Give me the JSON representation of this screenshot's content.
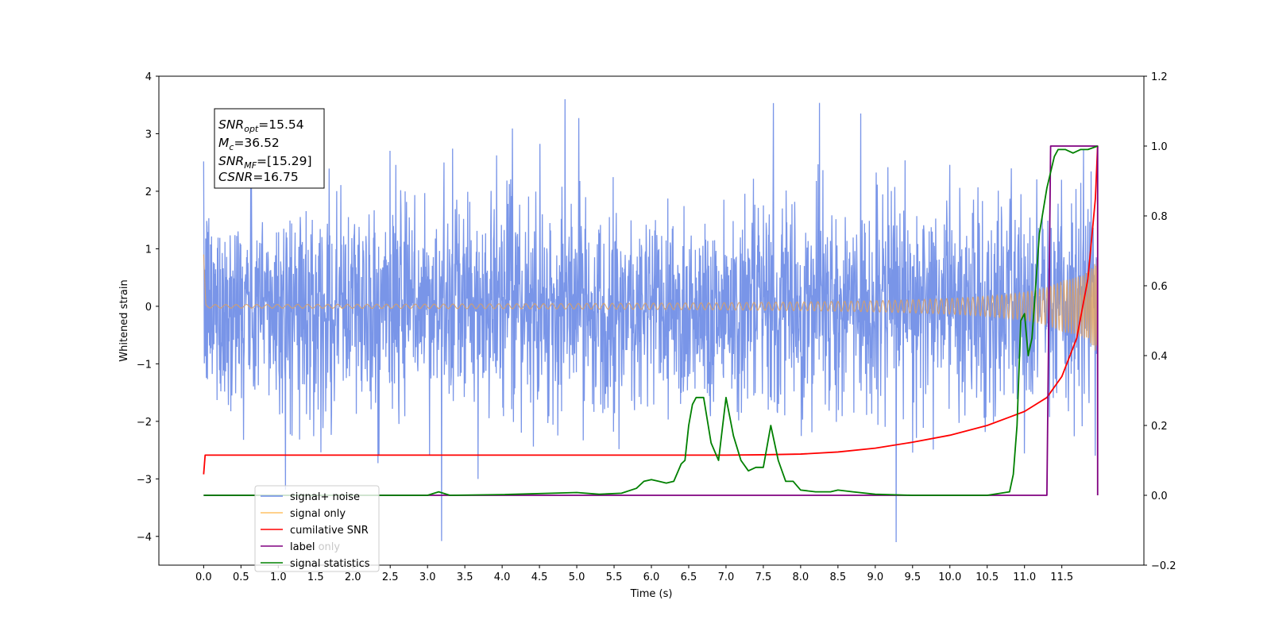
{
  "chart_data": {
    "type": "line",
    "xlabel": "Time (s)",
    "ylabel": "Whitened strain",
    "xlim": [
      -0.6,
      12.6
    ],
    "ylim": [
      -4.5,
      4.0
    ],
    "y2lim": [
      -0.2,
      1.2
    ],
    "x_ticks": [
      "0.0",
      "0.5",
      "1.0",
      "1.5",
      "2.0",
      "2.5",
      "3.0",
      "3.5",
      "4.0",
      "4.5",
      "5.0",
      "5.5",
      "6.0",
      "6.5",
      "7.0",
      "7.5",
      "8.0",
      "8.5",
      "9.0",
      "9.5",
      "10.0",
      "10.5",
      "11.0",
      "11.5"
    ],
    "y_ticks": [
      "4",
      "3",
      "2",
      "1",
      "0",
      "−1",
      "−2",
      "−3",
      "−4"
    ],
    "y2_ticks": [
      "1.2",
      "1.0",
      "0.8",
      "0.6",
      "0.4",
      "0.2",
      "0.0",
      "−0.2"
    ],
    "annotation": {
      "line1": {
        "sym": "SNR",
        "sub": "opt",
        "val": "=15.54"
      },
      "line2": {
        "sym": "M",
        "sub": "c",
        "val": "=36.52"
      },
      "line3": {
        "sym": "SNR",
        "sub": "MF",
        "val": "=[15.29]"
      },
      "line4": {
        "sym": "CSNR",
        "sub": "",
        "val": "=16.75"
      }
    },
    "legend": {
      "placement": "lower-left",
      "entries": [
        "signal+ noise",
        "signal only",
        "cumilative SNR",
        "label",
        "label only",
        "signal statistics"
      ]
    },
    "legend_overlap_text": "label only",
    "series": [
      {
        "name": "signal+ noise",
        "axis": "left",
        "color": "#6a8ae6",
        "kind": "noise",
        "t_start": 0.0,
        "t_end": 11.98,
        "noise_sigma": 1.0,
        "chirp_peak_amp": 0.9
      },
      {
        "name": "signal only",
        "axis": "left",
        "color": "#d9a066",
        "kind": "chirp",
        "t_start": 0.0,
        "t_end": 11.98,
        "t_merger": 12.0,
        "peak_amp": 1.0
      },
      {
        "name": "cumilative SNR",
        "axis": "right",
        "color": "#ff0000",
        "t": [
          0.0,
          0.02,
          0.5,
          2.0,
          4.0,
          6.0,
          7.0,
          7.5,
          8.0,
          8.5,
          9.0,
          9.5,
          10.0,
          10.5,
          11.0,
          11.3,
          11.5,
          11.7,
          11.85,
          11.95,
          11.98
        ],
        "v": [
          0.06,
          0.115,
          0.115,
          0.115,
          0.115,
          0.115,
          0.115,
          0.116,
          0.118,
          0.124,
          0.135,
          0.152,
          0.172,
          0.2,
          0.24,
          0.28,
          0.34,
          0.45,
          0.62,
          0.85,
          1.0
        ]
      },
      {
        "name": "label",
        "axis": "right",
        "color": "#800080",
        "t": [
          0.0,
          11.3,
          11.35,
          11.98,
          11.98
        ],
        "v": [
          0.0,
          0.0,
          1.0,
          1.0,
          0.0
        ]
      },
      {
        "name": "signal statistics",
        "axis": "right",
        "color": "#008000",
        "t": [
          0.0,
          0.2,
          1.0,
          2.0,
          3.0,
          3.15,
          3.3,
          4.0,
          5.0,
          5.3,
          5.6,
          5.8,
          5.9,
          6.0,
          6.1,
          6.2,
          6.3,
          6.4,
          6.45,
          6.5,
          6.55,
          6.6,
          6.7,
          6.8,
          6.9,
          7.0,
          7.1,
          7.2,
          7.3,
          7.4,
          7.5,
          7.6,
          7.7,
          7.8,
          7.9,
          8.0,
          8.2,
          8.4,
          8.5,
          8.7,
          9.0,
          9.5,
          10.0,
          10.5,
          10.8,
          10.85,
          10.9,
          10.95,
          11.0,
          11.05,
          11.1,
          11.2,
          11.3,
          11.4,
          11.45,
          11.55,
          11.65,
          11.75,
          11.85,
          11.98
        ],
        "v": [
          0.0,
          0.0,
          0.0,
          0.0,
          0.0,
          0.01,
          0.0,
          0.002,
          0.008,
          0.003,
          0.006,
          0.02,
          0.04,
          0.045,
          0.04,
          0.035,
          0.04,
          0.09,
          0.1,
          0.2,
          0.26,
          0.28,
          0.28,
          0.15,
          0.1,
          0.28,
          0.17,
          0.1,
          0.07,
          0.08,
          0.08,
          0.2,
          0.1,
          0.04,
          0.04,
          0.015,
          0.01,
          0.01,
          0.015,
          0.01,
          0.003,
          0.0,
          0.0,
          0.0,
          0.01,
          0.06,
          0.2,
          0.5,
          0.52,
          0.4,
          0.45,
          0.75,
          0.88,
          0.97,
          0.99,
          0.99,
          0.98,
          0.99,
          0.99,
          1.0
        ]
      }
    ]
  }
}
